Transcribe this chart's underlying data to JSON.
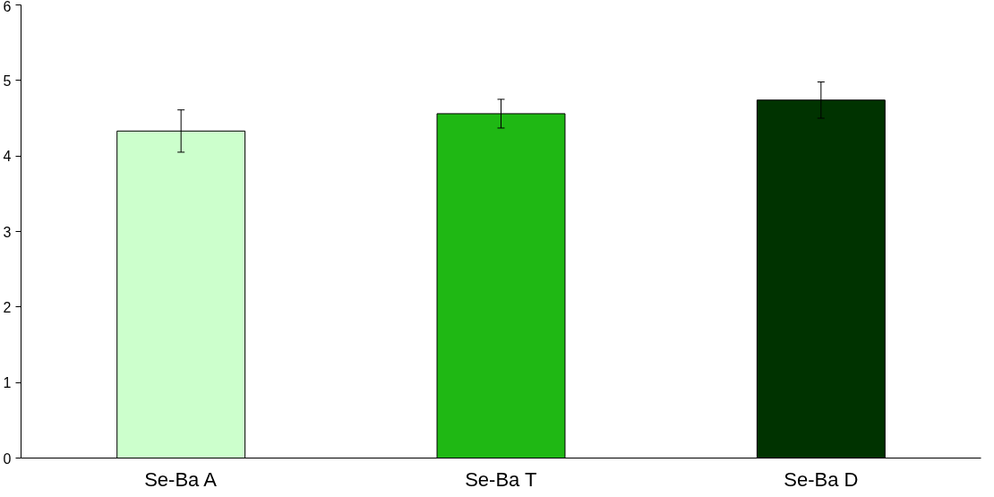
{
  "chart_data": {
    "type": "bar",
    "categories": [
      "Se-Ba A",
      "Se-Ba T",
      "Se-Ba D"
    ],
    "values": [
      4.33,
      4.56,
      4.74
    ],
    "colors": [
      "#ccffcc",
      "#1fb814",
      "#003300"
    ],
    "errors": [
      0.28,
      0.19,
      0.24
    ],
    "ylim": [
      0,
      6
    ],
    "yticks": [
      0,
      1,
      2,
      3,
      4,
      5,
      6
    ],
    "grid": false
  }
}
